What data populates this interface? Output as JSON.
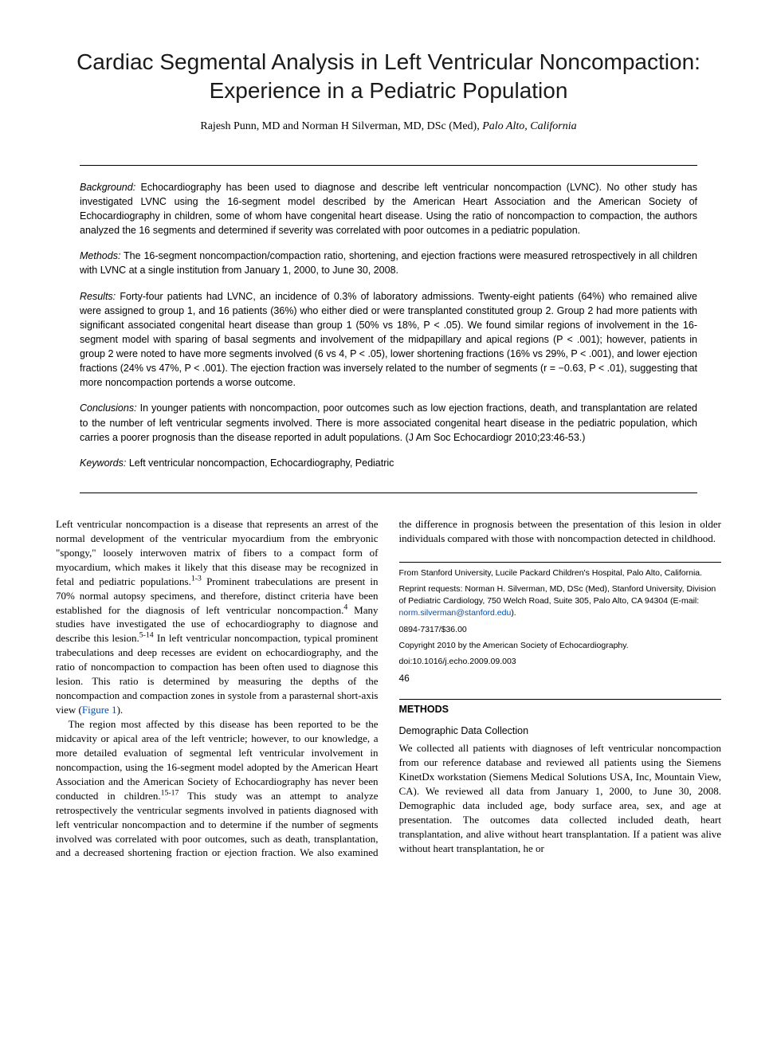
{
  "title": "Cardiac Segmental Analysis in Left Ventricular Noncompaction: Experience in a Pediatric Population",
  "authors_line": "Rajesh Punn, MD and Norman H Silverman, MD, DSc (Med), ",
  "authors_loc": "Palo Alto, California",
  "abstract": {
    "background_label": "Background:",
    "background": " Echocardiography has been used to diagnose and describe left ventricular noncompaction (LVNC). No other study has investigated LVNC using the 16-segment model described by the American Heart Association and the American Society of Echocardiography in children, some of whom have congenital heart disease. Using the ratio of noncompaction to compaction, the authors analyzed the 16 segments and determined if severity was correlated with poor outcomes in a pediatric population.",
    "methods_label": "Methods:",
    "methods": " The 16-segment noncompaction/compaction ratio, shortening, and ejection fractions were measured retrospectively in all children with LVNC at a single institution from January 1, 2000, to June 30, 2008.",
    "results_label": "Results:",
    "results": " Forty-four patients had LVNC, an incidence of 0.3% of laboratory admissions. Twenty-eight patients (64%) who remained alive were assigned to group 1, and 16 patients (36%) who either died or were transplanted constituted group 2. Group 2 had more patients with significant associated congenital heart disease than group 1 (50% vs 18%, P < .05). We found similar regions of involvement in the 16-segment model with sparing of basal segments and involvement of the midpapillary and apical regions (P < .001); however, patients in group 2 were noted to have more segments involved (6 vs 4, P < .05), lower shortening fractions (16% vs 29%, P < .001), and lower ejection fractions (24% vs 47%, P < .001). The ejection fraction was inversely related to the number of segments (r = −0.63, P < .01), suggesting that more noncompaction portends a worse outcome.",
    "conclusions_label": "Conclusions:",
    "conclusions": " In younger patients with noncompaction, poor outcomes such as low ejection fractions, death, and transplantation are related to the number of left ventricular segments involved. There is more associated congenital heart disease in the pediatric population, which carries a poorer prognosis than the disease reported in adult populations. (J Am Soc Echocardiogr 2010;23:46-53.)",
    "keywords_label": "Keywords:",
    "keywords": " Left ventricular noncompaction, Echocardiography, Pediatric"
  },
  "body": {
    "p1a": "Left ventricular noncompaction is a disease that represents an arrest of the normal development of the ventricular myocardium from the embryonic \"spongy,\" loosely interwoven matrix of fibers to a compact form of myocardium, which makes it likely that this disease may be recognized in fetal and pediatric populations.",
    "p1a_sup": "1-3",
    "p1b": " Prominent trabeculations are present in 70% normal autopsy specimens, and therefore, distinct criteria have been established for the diagnosis of left ventricular noncompaction.",
    "p1b_sup": "4",
    "p1c": " Many studies have investigated the use of echocardiography to diagnose and describe this lesion.",
    "p1c_sup": "5-14",
    "p1d": " In left ventricular noncompaction, typical prominent trabeculations and deep recesses are evident on echocardiography, and the ratio of noncompaction to compaction has been often used to diagnose this lesion. This ratio is determined by measuring the depths of the noncompaction and compaction zones in systole from a parasternal short-axis view (",
    "p1_fig": "Figure 1",
    "p1e": ").",
    "p2a": "The region most affected by this disease has been reported to be the midcavity or apical area of the left ventricle; however, to our knowledge, a more detailed evaluation of segmental left ventricular involvement in noncompaction, using the 16-segment model adopted by the American Heart Association and the American Society of Echocardiography has never been conducted in children.",
    "p2a_sup": "15-17",
    "p2b": " This study was an attempt to analyze retrospectively the ventricular segments involved in patients diagnosed with left ventricular noncompaction and to determine if the number of segments involved was correlated with poor outcomes, such as death, transplantation, and a decreased shortening fraction or ejection fraction. We also examined the difference in prognosis between the presentation of this lesion in older individuals compared with those with noncompaction detected in childhood."
  },
  "methods_head": "METHODS",
  "methods_sub": "Demographic Data Collection",
  "methods_body": "We collected all patients with diagnoses of left ventricular noncompaction from our reference database and reviewed all patients using the Siemens KinetDx workstation (Siemens Medical Solutions USA, Inc, Mountain View, CA). We reviewed all data from January 1, 2000, to June 30, 2008. Demographic data included age, body surface area, sex, and age at presentation. The outcomes data collected included death, heart transplantation, and alive without heart transplantation. If a patient was alive without heart transplantation, he or",
  "footnotes": {
    "from": "From Stanford University, Lucile Packard Children's Hospital, Palo Alto, California.",
    "reprint": "Reprint requests: Norman H. Silverman, MD, DSc (Med), Stanford University, Division of Pediatric Cardiology, 750 Welch Road, Suite 305, Palo Alto, CA 94304 (E-mail: ",
    "email": "norm.silverman@stanford.edu",
    "reprint_close": ").",
    "issn": "0894-7317/$36.00",
    "copyright": "Copyright 2010 by the American Society of Echocardiography.",
    "doi": "doi:10.1016/j.echo.2009.09.003"
  },
  "page_number": "46"
}
